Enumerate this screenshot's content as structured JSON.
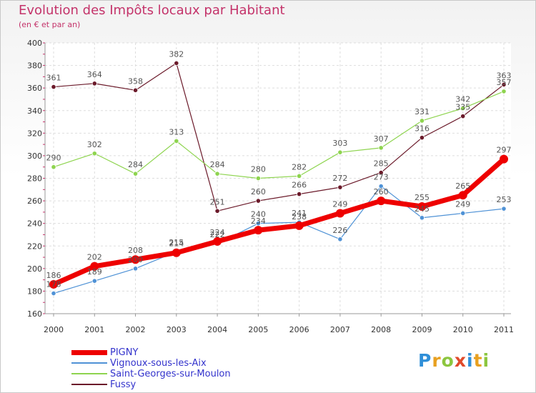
{
  "chart_data": {
    "type": "line",
    "title": "Evolution des Impôts locaux par Habitant",
    "subtitle": "(en € et par an)",
    "x": [
      "2000",
      "2001",
      "2002",
      "2003",
      "2004",
      "2005",
      "2006",
      "2007",
      "2008",
      "2009",
      "2010",
      "2011"
    ],
    "ylim": [
      160,
      400
    ],
    "yticks": [
      160,
      180,
      200,
      220,
      240,
      260,
      280,
      300,
      320,
      340,
      360,
      380,
      400
    ],
    "series": [
      {
        "name": "Fussy",
        "color": "#6b1a2a",
        "values": [
          361,
          364,
          358,
          382,
          251,
          260,
          266,
          272,
          285,
          316,
          335,
          363
        ]
      },
      {
        "name": "Saint-Georges-sur-Moulon",
        "color": "#8ed44f",
        "values": [
          290,
          302,
          284,
          313,
          284,
          280,
          282,
          303,
          307,
          331,
          342,
          357
        ]
      },
      {
        "name": "Vignoux-sous-les-Aix",
        "color": "#4f92d6",
        "values": [
          178,
          189,
          200,
          215,
          222,
          240,
          241,
          226,
          273,
          245,
          249,
          253
        ]
      },
      {
        "name": "PIGNY",
        "color": "#ee0000",
        "values": [
          186,
          202,
          208,
          214,
          224,
          234,
          238,
          249,
          260,
          255,
          265,
          297
        ]
      }
    ],
    "data_labels": {
      "Fussy": [
        "361",
        "364",
        "358",
        "382",
        "251",
        "260",
        "266",
        "272",
        "285",
        "316",
        "335",
        "363"
      ],
      "Saint-Georges-sur-Moulon": [
        "290",
        "302",
        "284",
        "313",
        "284",
        "280",
        "282",
        "303",
        "307",
        "331",
        "342",
        "357"
      ],
      "Vignoux-sous-les-Aix": [
        "178",
        "189",
        "200",
        "215",
        "222",
        "240",
        "241",
        "226",
        "273",
        "245",
        "249",
        "253"
      ],
      "PIGNY": [
        "186",
        "202",
        "208",
        "214",
        "224",
        "234",
        "238",
        "249",
        "260",
        "255",
        "265",
        "297"
      ]
    }
  },
  "legend": [
    {
      "label": "PIGNY",
      "color": "#ee0000"
    },
    {
      "label": "Vignoux-sous-les-Aix",
      "color": "#4f92d6"
    },
    {
      "label": "Saint-Georges-sur-Moulon",
      "color": "#8ed44f"
    },
    {
      "label": "Fussy",
      "color": "#6b1a2a"
    }
  ],
  "logo": {
    "letters": [
      "P",
      "r",
      "o",
      "x",
      "i",
      "t",
      "i"
    ],
    "colors": [
      "#2f8fd8",
      "#e8a020",
      "#8cc63f",
      "#e04a2a",
      "#2f8fd8",
      "#e8a020",
      "#8cc63f"
    ]
  }
}
